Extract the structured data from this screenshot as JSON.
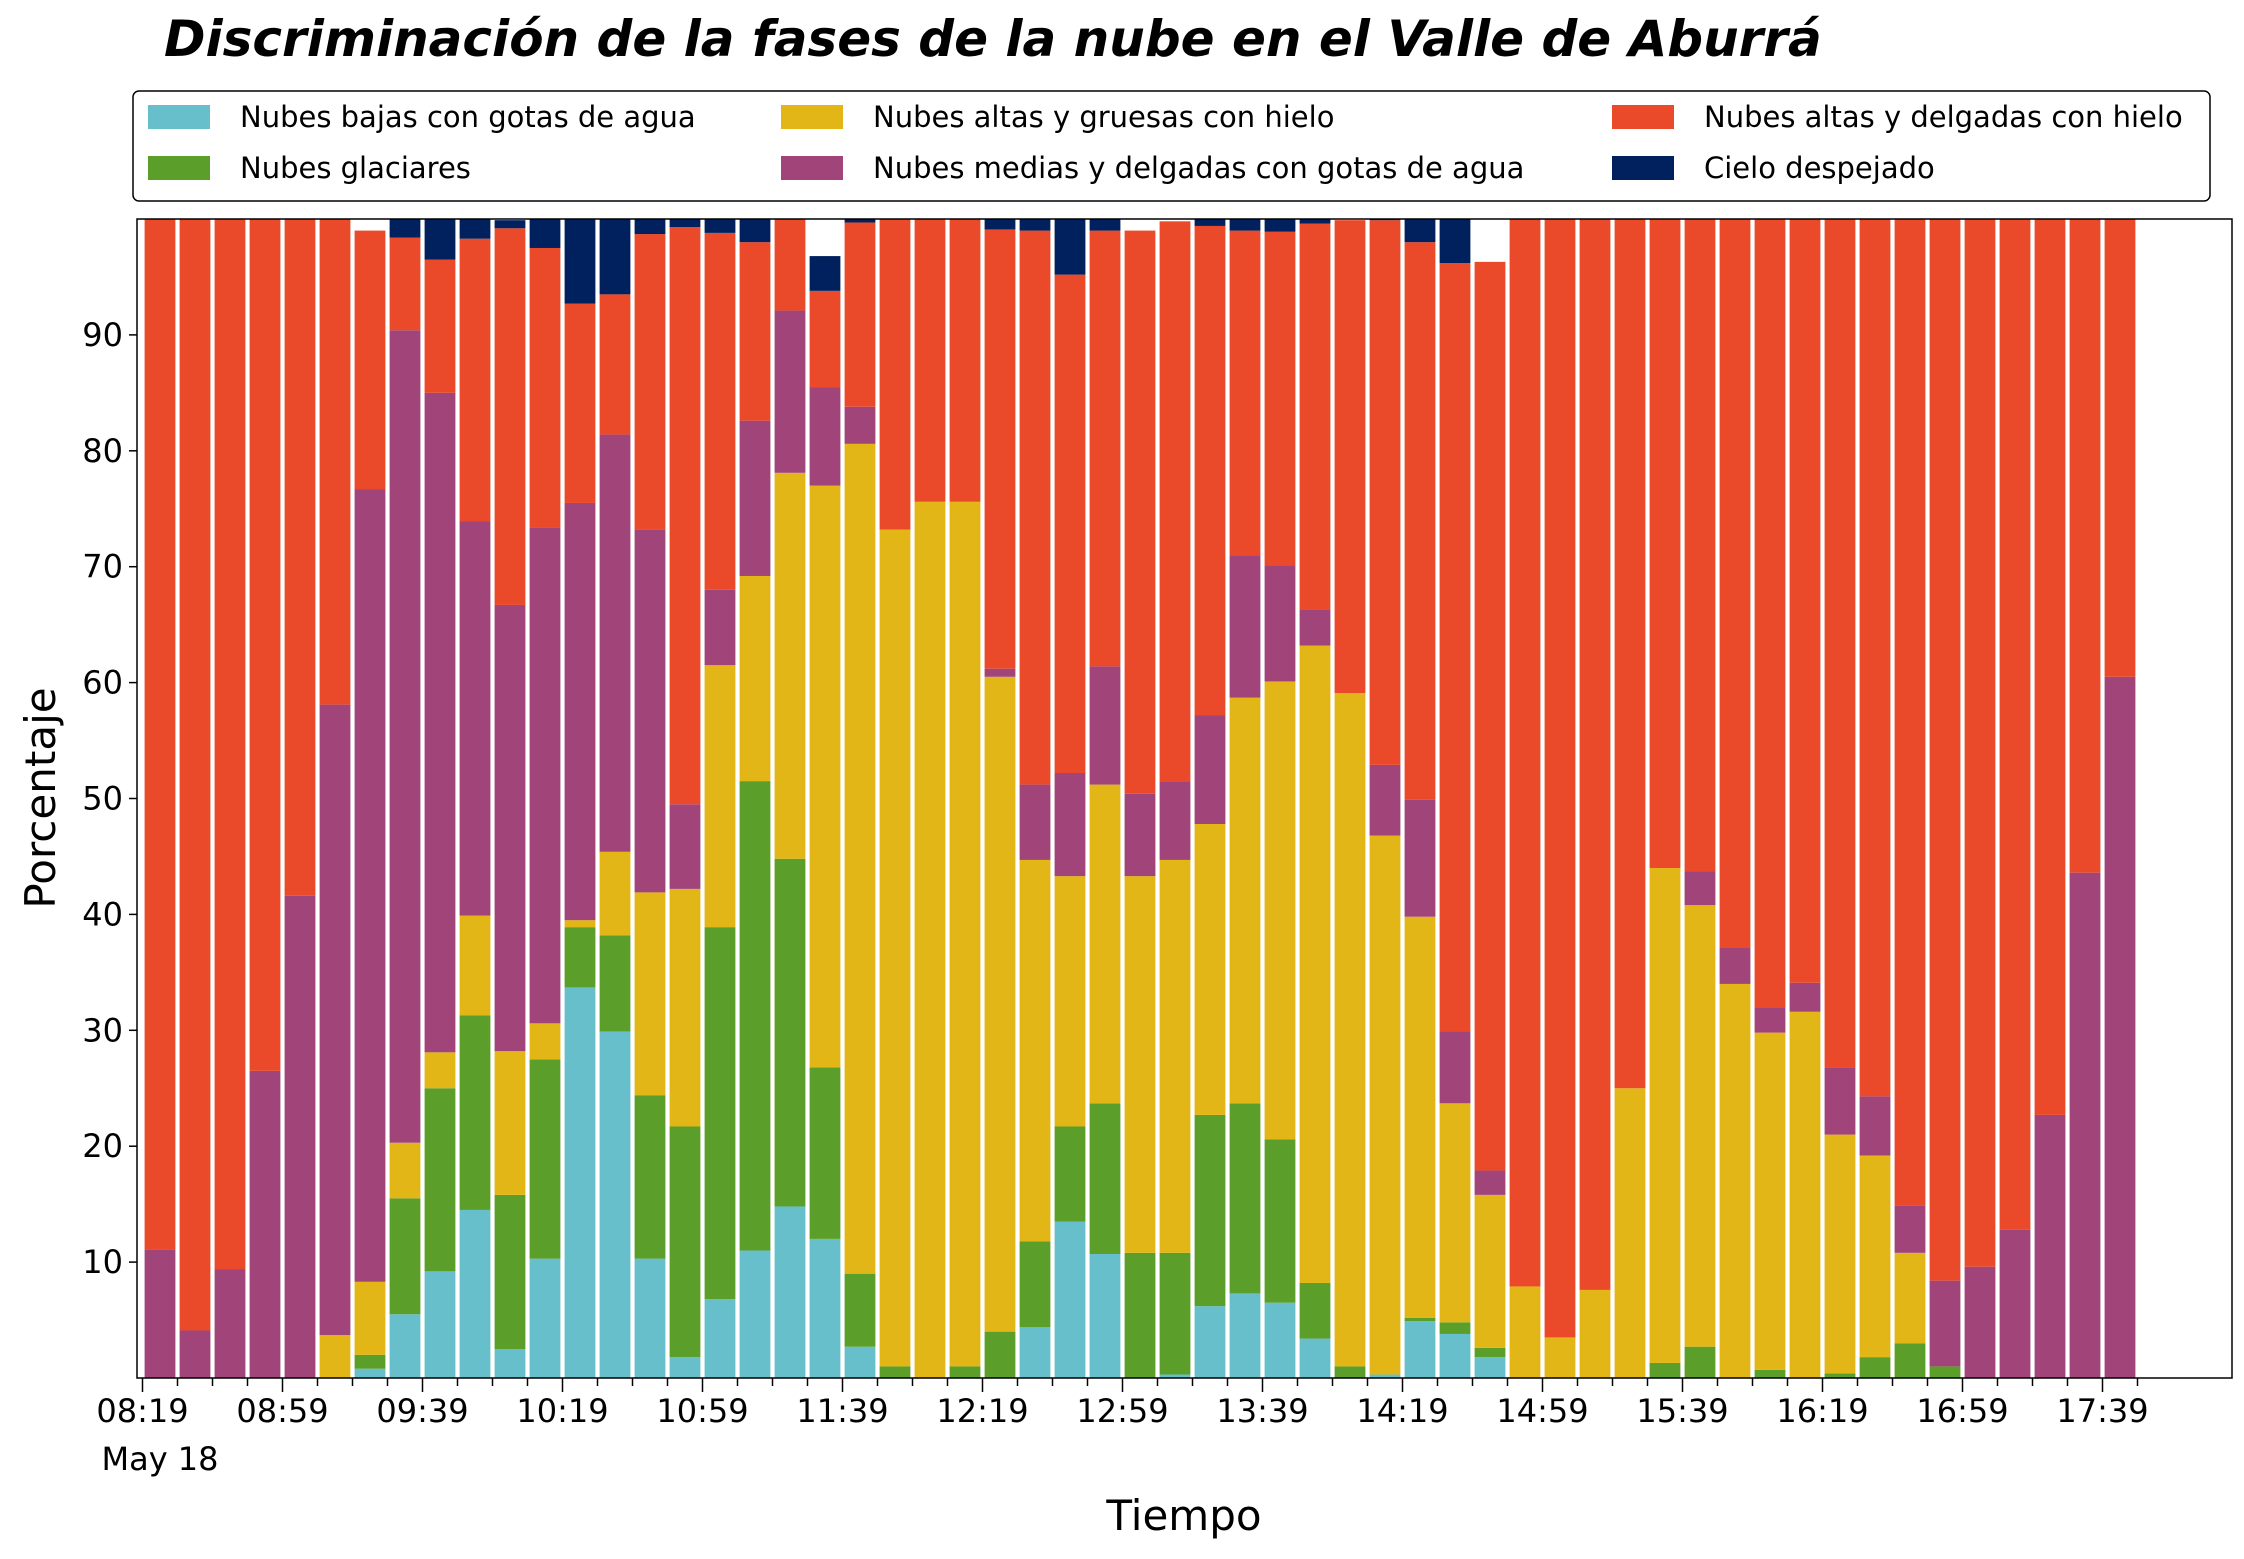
{
  "chart_data": {
    "type": "bar",
    "stacked": true,
    "title": "Discriminación de la fases de la nube en el Valle de Aburrá",
    "xlabel": "Tiempo",
    "ylabel": "Porcentaje",
    "ylim": [
      0,
      100
    ],
    "y_ticks": [
      10,
      20,
      30,
      40,
      50,
      60,
      70,
      80,
      90
    ],
    "x_ticks": [
      "08:19",
      "08:59",
      "09:39",
      "10:19",
      "10:59",
      "11:39",
      "12:19",
      "12:59",
      "13:39",
      "14:19",
      "14:59",
      "15:39",
      "16:19",
      "16:59",
      "17:39"
    ],
    "x_date_label": "May 18",
    "bar_interval_minutes": 10,
    "first_bar": "08:19",
    "grid": false,
    "legend_position": "top",
    "series": [
      {
        "name": "Nubes bajas con gotas de agua",
        "color": "#67bfcb",
        "values": [
          0,
          0,
          0,
          0,
          0,
          0,
          0.8,
          5.5,
          9.2,
          14.5,
          2.5,
          10.3,
          33.7,
          29.9,
          10.3,
          1.8,
          6.8,
          11.0,
          14.8,
          12.0,
          2.7,
          0,
          0,
          0,
          0,
          4.4,
          13.5,
          10.7,
          0,
          0.3,
          6.2,
          7.3,
          6.5,
          3.4,
          0,
          0.3,
          4.9,
          3.8,
          1.8,
          0,
          0,
          0,
          0,
          0,
          0,
          0,
          0,
          0,
          0,
          0,
          0,
          0,
          0,
          0,
          0,
          0,
          0,
          0
        ]
      },
      {
        "name": "Nubes glaciares",
        "color": "#5b9f2a",
        "values": [
          0,
          0,
          0,
          0,
          0,
          0,
          1.2,
          10.0,
          15.8,
          16.8,
          13.3,
          17.2,
          5.2,
          8.3,
          14.1,
          19.9,
          32.1,
          40.5,
          30.0,
          14.8,
          6.3,
          1.0,
          0,
          1.0,
          4.0,
          7.4,
          8.2,
          13.0,
          10.8,
          10.5,
          16.5,
          16.4,
          14.1,
          4.8,
          1.0,
          0,
          0.3,
          1.0,
          0.8,
          0,
          0,
          0,
          0,
          1.3,
          2.7,
          0,
          0.7,
          0,
          0.4,
          1.8,
          3.0,
          1.0,
          0,
          0,
          0,
          0,
          0,
          0
        ]
      },
      {
        "name": "Nubes altas y gruesas con hielo",
        "color": "#e2b616",
        "values": [
          0,
          0,
          0,
          0,
          0,
          3.7,
          6.3,
          4.8,
          3.1,
          8.6,
          12.4,
          3.1,
          0.6,
          7.2,
          17.5,
          20.5,
          22.6,
          17.7,
          33.3,
          50.2,
          71.6,
          72.2,
          75.6,
          74.6,
          56.5,
          32.9,
          21.6,
          27.5,
          32.5,
          33.9,
          25.1,
          35.0,
          39.5,
          55.0,
          58.1,
          46.5,
          34.6,
          18.9,
          13.2,
          7.9,
          3.5,
          7.6,
          25.0,
          42.7,
          38.1,
          34.0,
          29.1,
          31.6,
          20.6,
          17.4,
          7.8,
          0,
          0,
          0,
          0,
          0,
          0,
          0
        ]
      },
      {
        "name": "Nubes medias y delgadas con gotas de agua",
        "color": "#a04479",
        "values": [
          11.1,
          4.1,
          9.4,
          26.5,
          41.6,
          54.4,
          68.4,
          70.1,
          56.9,
          34.0,
          38.5,
          42.8,
          36.0,
          36.0,
          31.3,
          7.3,
          6.5,
          13.4,
          14.0,
          8.5,
          3.2,
          0,
          0,
          0,
          0.7,
          6.5,
          8.9,
          10.2,
          7.1,
          6.8,
          9.4,
          12.3,
          10.0,
          3.1,
          0,
          6.1,
          10.1,
          6.2,
          2.1,
          0,
          0,
          0,
          0,
          0,
          2.9,
          3.1,
          2.2,
          2.5,
          5.8,
          5.1,
          4.1,
          7.4,
          9.6,
          12.8,
          22.7,
          43.6,
          60.5,
          0
        ]
      },
      {
        "name": "Nubes altas y delgadas con hielo",
        "color": "#ea4a2a",
        "values": [
          88.9,
          95.9,
          90.6,
          73.5,
          58.4,
          41.9,
          22.3,
          8.0,
          11.5,
          24.4,
          32.5,
          24.1,
          17.2,
          12.1,
          25.5,
          49.8,
          30.8,
          15.4,
          8.2,
          8.3,
          15.9,
          26.8,
          24.4,
          24.4,
          37.9,
          47.8,
          43.0,
          37.6,
          48.6,
          48.3,
          42.2,
          28.0,
          28.8,
          33.3,
          40.8,
          47.0,
          48.1,
          66.3,
          78.4,
          92.1,
          96.5,
          92.4,
          75.0,
          56.0,
          56.3,
          62.9,
          68.0,
          65.9,
          73.2,
          75.7,
          85.1,
          91.6,
          90.4,
          87.2,
          77.3,
          56.4,
          39.5,
          0
        ]
      },
      {
        "name": "Cielo despejado",
        "color": "#00215d",
        "values": [
          0,
          0,
          0,
          0,
          0,
          0,
          0,
          1.6,
          3.5,
          1.7,
          0.7,
          2.5,
          7.3,
          6.5,
          1.3,
          0.7,
          1.2,
          2.0,
          3.0,
          3.0,
          0.3,
          0,
          0,
          0,
          0.9,
          1.0,
          4.8,
          1.0,
          0,
          0,
          0.6,
          1.0,
          1.1,
          0.4,
          0,
          0.3,
          2.0,
          3.8,
          0,
          0,
          0,
          0,
          0,
          0,
          0,
          0,
          0,
          0,
          0,
          0,
          0,
          0,
          0,
          0,
          0,
          0,
          0,
          0
        ]
      }
    ]
  }
}
